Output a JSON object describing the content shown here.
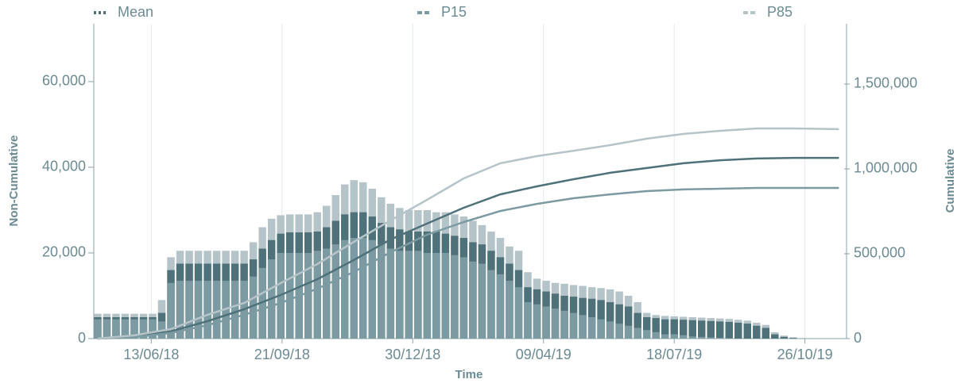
{
  "chart_data": {
    "type": "bar",
    "xlabel": "Time",
    "ylabel": "Non-Cumulative",
    "y2label": "Cumulative",
    "x": [
      "03/05/18",
      "10/05/18",
      "17/05/18",
      "24/05/18",
      "31/05/18",
      "07/06/18",
      "14/06/18",
      "21/06/18",
      "28/06/18",
      "05/07/18",
      "12/07/18",
      "19/07/18",
      "26/07/18",
      "02/08/18",
      "09/08/18",
      "16/08/18",
      "23/08/18",
      "30/08/18",
      "06/09/18",
      "13/09/18",
      "20/09/18",
      "27/09/18",
      "04/10/18",
      "11/10/18",
      "18/10/18",
      "25/10/18",
      "01/11/18",
      "08/11/18",
      "15/11/18",
      "22/11/18",
      "29/11/18",
      "06/12/18",
      "13/12/18",
      "20/12/18",
      "27/12/18",
      "03/01/19",
      "10/01/19",
      "17/01/19",
      "24/01/19",
      "31/01/19",
      "07/02/19",
      "14/02/19",
      "21/02/19",
      "28/02/19",
      "07/03/19",
      "14/03/19",
      "21/03/19",
      "28/03/19",
      "04/04/19",
      "11/04/19",
      "18/04/19",
      "25/04/19",
      "02/05/19",
      "09/05/19",
      "16/05/19",
      "23/05/19",
      "30/05/19",
      "06/06/19",
      "13/06/19",
      "20/06/19",
      "27/06/19",
      "04/07/19",
      "11/07/19",
      "18/07/19",
      "25/07/19",
      "01/08/19",
      "08/08/19",
      "15/08/19",
      "22/08/19",
      "29/08/19",
      "05/09/19",
      "12/09/19",
      "19/09/19",
      "26/09/19",
      "03/10/19",
      "10/10/19",
      "17/10/19",
      "24/10/19"
    ],
    "cumulative_x": [
      "03/05/18",
      "31/05/18",
      "28/06/18",
      "26/07/18",
      "23/08/18",
      "20/09/18",
      "18/10/18",
      "15/11/18",
      "13/12/18",
      "10/01/19",
      "07/02/19",
      "07/03/19",
      "04/04/19",
      "02/05/19",
      "30/05/19",
      "27/06/19",
      "25/07/19",
      "22/08/19",
      "19/09/19",
      "17/10/19",
      "21/11/19"
    ],
    "series": [
      {
        "name": "Mean",
        "color": "#4f727a",
        "values": [
          5000,
          5000,
          5000,
          5000,
          5000,
          5000,
          5000,
          6000,
          16000,
          17500,
          17500,
          17500,
          17500,
          17500,
          17500,
          17500,
          17500,
          18500,
          21000,
          23000,
          24500,
          24800,
          24800,
          24800,
          25000,
          26000,
          27500,
          29000,
          29500,
          29500,
          28500,
          27000,
          26000,
          25500,
          25000,
          25000,
          25000,
          25000,
          24500,
          24000,
          23500,
          22500,
          22000,
          20500,
          19000,
          17500,
          16000,
          12000,
          11500,
          11000,
          10500,
          10000,
          9800,
          9500,
          9300,
          9000,
          8500,
          8000,
          7500,
          6000,
          5000,
          4800,
          4500,
          4500,
          4400,
          4300,
          4200,
          4100,
          4000,
          3900,
          3700,
          3500,
          3000,
          2500,
          1000,
          400,
          150,
          50
        ],
        "cumulative": {
          "axis": "y2",
          "values": [
            0,
            14000,
            42000,
            103000,
            173000,
            257000,
            350000,
            463000,
            584000,
            678000,
            771000,
            850000,
            897000,
            939000,
            977000,
            1005000,
            1033000,
            1051000,
            1061000,
            1065000,
            1065000
          ]
        }
      },
      {
        "name": "P15",
        "color": "#7c9aa1",
        "values": [
          4500,
          4500,
          4500,
          4500,
          4500,
          4500,
          4500,
          4000,
          13000,
          13500,
          13500,
          13500,
          13500,
          13500,
          13500,
          13500,
          13500,
          14500,
          16500,
          18500,
          20000,
          20000,
          20000,
          20000,
          20500,
          21000,
          22000,
          23000,
          23500,
          23500,
          23000,
          22000,
          21000,
          20500,
          20500,
          20500,
          20000,
          20000,
          20000,
          19500,
          19000,
          18000,
          17500,
          16000,
          15000,
          13500,
          12000,
          8500,
          8000,
          7500,
          7000,
          6500,
          6000,
          5500,
          5000,
          4500,
          4000,
          3500,
          3000,
          2500,
          2000,
          1500,
          1000,
          1000,
          800,
          500,
          400,
          300,
          200,
          100,
          0,
          0,
          0,
          0,
          0,
          0,
          0,
          0
        ],
        "cumulative": {
          "axis": "y2",
          "values": [
            0,
            9000,
            33000,
            79000,
            140000,
            210000,
            294000,
            393000,
            509000,
            612000,
            687000,
            752000,
            794000,
            827000,
            850000,
            869000,
            879000,
            883000,
            888000,
            888000,
            888000
          ]
        }
      },
      {
        "name": "P85",
        "color": "#b5c4c9",
        "values": [
          5800,
          5800,
          5800,
          5800,
          5800,
          5800,
          5800,
          9000,
          19000,
          20500,
          20500,
          20500,
          20500,
          20500,
          20500,
          20500,
          20500,
          22500,
          26000,
          28000,
          28800,
          29000,
          29000,
          29000,
          29500,
          31000,
          33500,
          36000,
          37000,
          36500,
          35000,
          33000,
          31500,
          30500,
          30000,
          30000,
          30000,
          29500,
          29500,
          29000,
          28500,
          27500,
          26500,
          25000,
          23500,
          21500,
          20500,
          15500,
          14000,
          13500,
          13000,
          12800,
          12500,
          12300,
          12000,
          11800,
          11500,
          11000,
          10000,
          8500,
          6000,
          5500,
          5300,
          5200,
          5100,
          5000,
          4900,
          4800,
          4700,
          4600,
          4400,
          4200,
          3700,
          3200,
          1500,
          700,
          300,
          100
        ],
        "cumulative": {
          "axis": "y2",
          "values": [
            0,
            19000,
            56000,
            140000,
            210000,
            327000,
            439000,
            570000,
            696000,
            818000,
            944000,
            1033000,
            1075000,
            1107000,
            1140000,
            1178000,
            1206000,
            1224000,
            1238000,
            1238000,
            1234000
          ]
        }
      }
    ],
    "xlim": [
      "30/04/18",
      "25/11/19"
    ],
    "xticks": [
      "13/06/18",
      "21/09/18",
      "30/12/18",
      "09/04/19",
      "18/07/19",
      "26/10/19"
    ],
    "ylim": [
      0,
      73500
    ],
    "yticks": [
      {
        "value": 0,
        "label": "0"
      },
      {
        "value": 20000,
        "label": "20,000"
      },
      {
        "value": 40000,
        "label": "40,000"
      },
      {
        "value": 60000,
        "label": "60,000"
      }
    ],
    "y2lim": [
      0,
      1855000
    ],
    "y2ticks": [
      {
        "value": 0,
        "label": "0"
      },
      {
        "value": 500000,
        "label": "500,000"
      },
      {
        "value": 1000000,
        "label": "1,000,000"
      },
      {
        "value": 1500000,
        "label": "1,500,000"
      }
    ],
    "grid": true,
    "legend": "top"
  }
}
